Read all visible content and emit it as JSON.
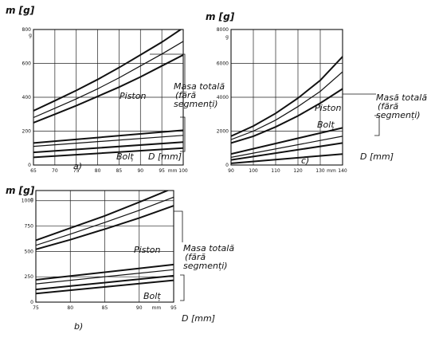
{
  "chart_data": [
    {
      "id": "a",
      "type": "line",
      "panel_label": "a)",
      "ylabel": "m [g]",
      "xlabel": "D [mm]",
      "xlim": [
        65,
        100
      ],
      "ylim": [
        0,
        800
      ],
      "x_ticks": [
        "65",
        "70",
        "75",
        "80",
        "85",
        "90",
        "95",
        "mm",
        "100"
      ],
      "x_tick_values": [
        65,
        70,
        75,
        80,
        85,
        90,
        95,
        97.5,
        100
      ],
      "y_ticks": [
        "0",
        "200",
        "400",
        "600",
        "800"
      ],
      "y_tick_values": [
        0,
        200,
        400,
        600,
        800
      ],
      "grid": true,
      "annotations": {
        "piston": "Piston",
        "total_1": "Masa totală",
        "total_2": "(fără",
        "total_3": "segmenți)",
        "bolt": "Bolț",
        "g": "g"
      },
      "series": [
        {
          "x": [
            65,
            70,
            75,
            80,
            85,
            90,
            95,
            100
          ],
          "values": [
            320,
            380,
            440,
            505,
            575,
            650,
            725,
            810
          ],
          "weight": 2.0
        },
        {
          "x": [
            65,
            70,
            75,
            80,
            85,
            90,
            95,
            100
          ],
          "values": [
            280,
            335,
            390,
            450,
            515,
            585,
            655,
            730
          ],
          "weight": 1.2
        },
        {
          "x": [
            65,
            70,
            75,
            80,
            85,
            90,
            95,
            100
          ],
          "values": [
            250,
            300,
            350,
            405,
            460,
            520,
            585,
            650
          ],
          "weight": 2.0
        },
        {
          "x": [
            65,
            100
          ],
          "values": [
            130,
            205
          ],
          "weight": 2.0
        },
        {
          "x": [
            65,
            100
          ],
          "values": [
            110,
            175
          ],
          "weight": 1.2
        },
        {
          "x": [
            65,
            100
          ],
          "values": [
            75,
            135
          ],
          "weight": 2.0
        },
        {
          "x": [
            65,
            100
          ],
          "values": [
            45,
            100
          ],
          "weight": 2.0
        }
      ]
    },
    {
      "id": "c",
      "type": "line",
      "panel_label": "c)",
      "ylabel": "m [g]",
      "xlabel": "D [mm]",
      "xlim": [
        90,
        140
      ],
      "ylim": [
        0,
        8000
      ],
      "x_ticks": [
        "90",
        "100",
        "110",
        "120",
        "130",
        "mm",
        "140"
      ],
      "x_tick_values": [
        90,
        100,
        110,
        120,
        130,
        135,
        140
      ],
      "y_ticks": [
        "0",
        "2000",
        "4000",
        "6000",
        "8000"
      ],
      "y_tick_values": [
        0,
        2000,
        4000,
        6000,
        8000
      ],
      "grid": true,
      "annotations": {
        "piston": "Piston",
        "total_1": "Masă totală",
        "total_2": "(fără",
        "total_3": "segmenți)",
        "bolt": "Bolț",
        "g": "g"
      },
      "series": [
        {
          "x": [
            90,
            100,
            110,
            120,
            130,
            140
          ],
          "values": [
            1700,
            2300,
            3050,
            3950,
            5000,
            6400
          ],
          "weight": 2.0
        },
        {
          "x": [
            90,
            100,
            110,
            120,
            130,
            140
          ],
          "values": [
            1500,
            2000,
            2650,
            3450,
            4350,
            5500
          ],
          "weight": 1.2
        },
        {
          "x": [
            90,
            100,
            110,
            120,
            130,
            140
          ],
          "values": [
            1300,
            1700,
            2250,
            2900,
            3650,
            4500
          ],
          "weight": 2.0
        },
        {
          "x": [
            90,
            140
          ],
          "values": [
            650,
            2200
          ],
          "weight": 2.0
        },
        {
          "x": [
            90,
            140
          ],
          "values": [
            450,
            1700
          ],
          "weight": 1.2
        },
        {
          "x": [
            90,
            140
          ],
          "values": [
            300,
            1300
          ],
          "weight": 2.0
        },
        {
          "x": [
            90,
            140
          ],
          "values": [
            100,
            650
          ],
          "weight": 2.0
        }
      ]
    },
    {
      "id": "b",
      "type": "line",
      "panel_label": "b)",
      "ylabel": "m [g]",
      "xlabel": "D [mm]",
      "xlim": [
        75,
        95
      ],
      "ylim": [
        0,
        1100
      ],
      "x_ticks": [
        "75",
        "80",
        "85",
        "90",
        "mm",
        "95"
      ],
      "x_tick_values": [
        75,
        80,
        85,
        90,
        92.5,
        95
      ],
      "y_ticks": [
        "0",
        "250",
        "500",
        "750",
        "1000"
      ],
      "y_tick_values": [
        0,
        250,
        500,
        750,
        1000
      ],
      "grid": true,
      "annotations": {
        "piston": "Piston",
        "total_1": "Masa totală",
        "total_2": "(fără",
        "total_3": "segmenți)",
        "bolt": "Bolț",
        "g": "g"
      },
      "series": [
        {
          "x": [
            75,
            80,
            85,
            90,
            95
          ],
          "values": [
            610,
            730,
            850,
            985,
            1125
          ],
          "weight": 2.0
        },
        {
          "x": [
            75,
            80,
            85,
            90,
            95
          ],
          "values": [
            560,
            670,
            785,
            905,
            1035
          ],
          "weight": 1.2
        },
        {
          "x": [
            75,
            80,
            85,
            90,
            95
          ],
          "values": [
            520,
            615,
            720,
            830,
            950
          ],
          "weight": 2.0
        },
        {
          "x": [
            75,
            95
          ],
          "values": [
            220,
            370
          ],
          "weight": 2.0
        },
        {
          "x": [
            75,
            95
          ],
          "values": [
            180,
            320
          ],
          "weight": 1.2
        },
        {
          "x": [
            75,
            95
          ],
          "values": [
            125,
            260
          ],
          "weight": 2.0
        },
        {
          "x": [
            75,
            95
          ],
          "values": [
            85,
            215
          ],
          "weight": 2.0
        }
      ]
    }
  ]
}
